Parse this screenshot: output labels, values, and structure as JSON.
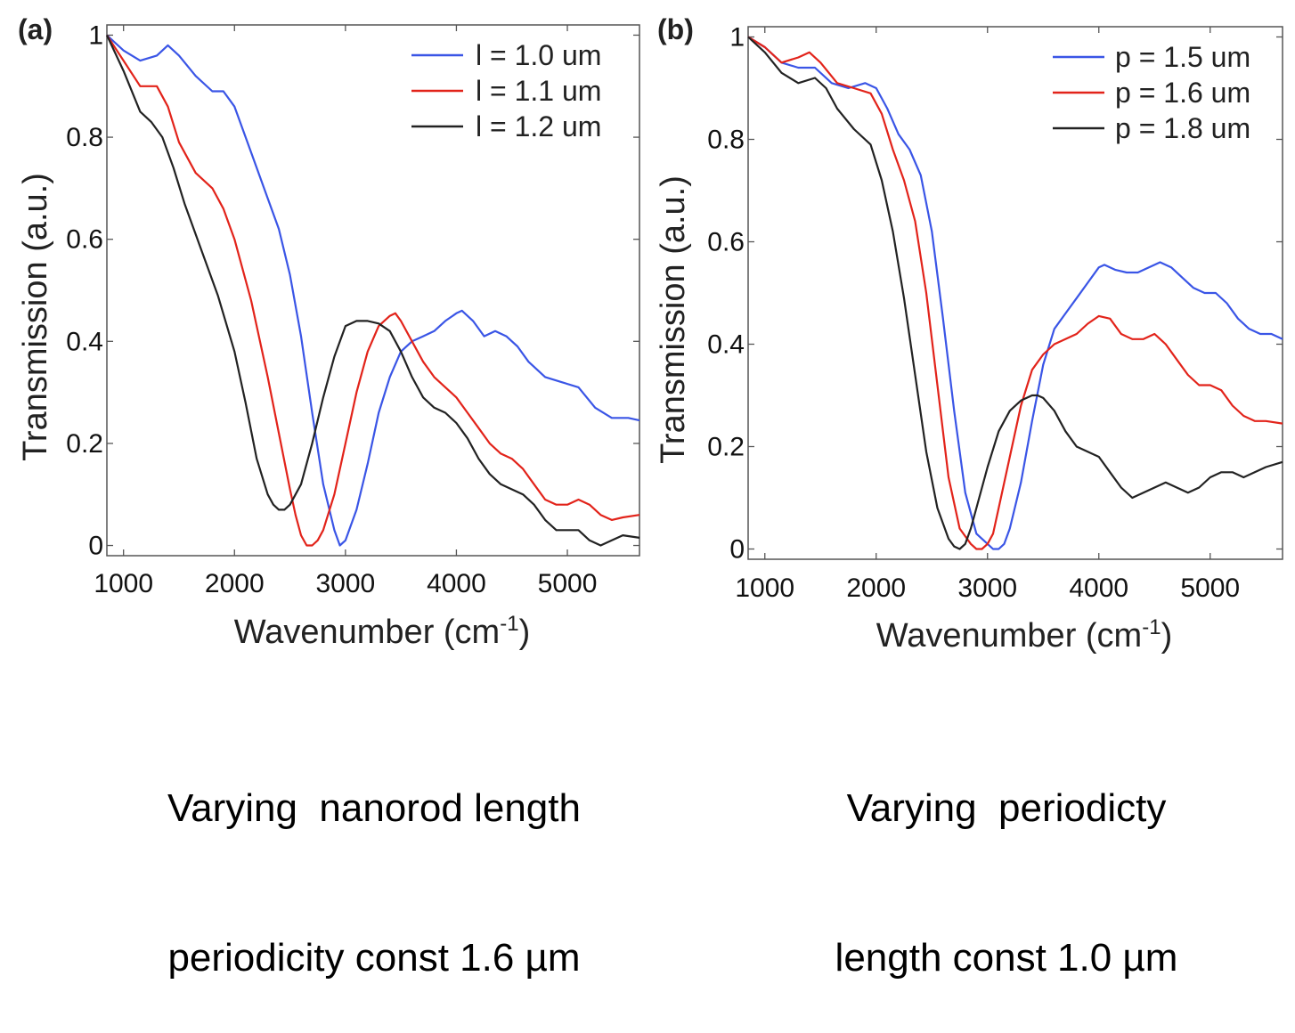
{
  "chart_data": [
    {
      "panel_label": "(a)",
      "type": "line",
      "xlabel": "Wavenumber (cm",
      "xlabel_sup": "-1",
      "xlabel_close": ")",
      "ylabel": "Transmission (a.u.)",
      "xlim": [
        850,
        5650
      ],
      "ylim": [
        -0.02,
        1.02
      ],
      "xticks": [
        1000,
        2000,
        3000,
        4000,
        5000
      ],
      "yticks": [
        0,
        0.2,
        0.4,
        0.6,
        0.8,
        1
      ],
      "ytick_labels": [
        "0",
        "0.2",
        "0.4",
        "0.6",
        "0.8",
        "1"
      ],
      "legend_position": "top-right",
      "grid": false,
      "series": [
        {
          "name": "l = 1.0 um",
          "color": "#3a55e6",
          "x": [
            850,
            1000,
            1150,
            1300,
            1400,
            1500,
            1650,
            1800,
            1900,
            2000,
            2150,
            2300,
            2400,
            2500,
            2600,
            2700,
            2800,
            2900,
            2950,
            3000,
            3100,
            3200,
            3300,
            3400,
            3500,
            3600,
            3700,
            3800,
            3900,
            4000,
            4050,
            4150,
            4250,
            4350,
            4450,
            4550,
            4650,
            4800,
            4950,
            5100,
            5250,
            5400,
            5550,
            5650
          ],
          "y": [
            1.0,
            0.97,
            0.95,
            0.96,
            0.98,
            0.96,
            0.92,
            0.89,
            0.89,
            0.86,
            0.77,
            0.68,
            0.62,
            0.53,
            0.41,
            0.26,
            0.12,
            0.03,
            0.0,
            0.01,
            0.07,
            0.16,
            0.26,
            0.33,
            0.38,
            0.4,
            0.41,
            0.42,
            0.44,
            0.455,
            0.46,
            0.44,
            0.41,
            0.42,
            0.41,
            0.39,
            0.36,
            0.33,
            0.32,
            0.31,
            0.27,
            0.25,
            0.25,
            0.245
          ]
        },
        {
          "name": "l = 1.1 um",
          "color": "#e2231a",
          "x": [
            850,
            1000,
            1150,
            1300,
            1400,
            1500,
            1650,
            1800,
            1900,
            2000,
            2150,
            2300,
            2400,
            2500,
            2550,
            2600,
            2650,
            2700,
            2750,
            2800,
            2900,
            3000,
            3100,
            3200,
            3300,
            3400,
            3450,
            3500,
            3600,
            3700,
            3800,
            3900,
            4000,
            4100,
            4200,
            4300,
            4400,
            4500,
            4600,
            4700,
            4800,
            4900,
            5000,
            5100,
            5200,
            5300,
            5400,
            5500,
            5650
          ],
          "y": [
            1.0,
            0.95,
            0.9,
            0.9,
            0.86,
            0.79,
            0.73,
            0.7,
            0.66,
            0.6,
            0.48,
            0.33,
            0.22,
            0.11,
            0.06,
            0.02,
            0.0,
            0.0,
            0.01,
            0.03,
            0.1,
            0.2,
            0.3,
            0.38,
            0.43,
            0.45,
            0.455,
            0.44,
            0.4,
            0.36,
            0.33,
            0.31,
            0.29,
            0.26,
            0.23,
            0.2,
            0.18,
            0.17,
            0.15,
            0.12,
            0.09,
            0.08,
            0.08,
            0.09,
            0.08,
            0.06,
            0.05,
            0.055,
            0.06
          ]
        },
        {
          "name": "l = 1.2 um",
          "color": "#222222",
          "x": [
            850,
            1000,
            1150,
            1250,
            1350,
            1450,
            1550,
            1700,
            1850,
            2000,
            2100,
            2200,
            2300,
            2350,
            2400,
            2450,
            2500,
            2600,
            2700,
            2800,
            2900,
            3000,
            3100,
            3200,
            3300,
            3400,
            3500,
            3600,
            3700,
            3800,
            3900,
            4000,
            4100,
            4200,
            4300,
            4400,
            4500,
            4600,
            4700,
            4800,
            4900,
            5000,
            5100,
            5200,
            5300,
            5400,
            5500,
            5650
          ],
          "y": [
            1.0,
            0.93,
            0.85,
            0.83,
            0.8,
            0.74,
            0.67,
            0.58,
            0.49,
            0.38,
            0.28,
            0.17,
            0.1,
            0.08,
            0.07,
            0.07,
            0.08,
            0.12,
            0.2,
            0.29,
            0.37,
            0.43,
            0.44,
            0.44,
            0.435,
            0.42,
            0.38,
            0.33,
            0.29,
            0.27,
            0.26,
            0.24,
            0.21,
            0.17,
            0.14,
            0.12,
            0.11,
            0.1,
            0.08,
            0.05,
            0.03,
            0.03,
            0.03,
            0.01,
            0.0,
            0.01,
            0.02,
            0.015
          ]
        }
      ]
    },
    {
      "panel_label": "(b)",
      "type": "line",
      "xlabel": "Wavenumber (cm",
      "xlabel_sup": "-1",
      "xlabel_close": ")",
      "ylabel": "Transmission (a.u.)",
      "xlim": [
        850,
        5650
      ],
      "ylim": [
        -0.02,
        1.02
      ],
      "xticks": [
        1000,
        2000,
        3000,
        4000,
        5000
      ],
      "yticks": [
        0,
        0.2,
        0.4,
        0.6,
        0.8,
        1
      ],
      "ytick_labels": [
        "0",
        "0.2",
        "0.4",
        "0.6",
        "0.8",
        "1"
      ],
      "legend_position": "top-right",
      "grid": false,
      "series": [
        {
          "name": "p = 1.5 um",
          "color": "#3a55e6",
          "x": [
            850,
            1000,
            1150,
            1300,
            1450,
            1600,
            1750,
            1900,
            2000,
            2100,
            2200,
            2300,
            2400,
            2500,
            2600,
            2700,
            2800,
            2900,
            3000,
            3050,
            3100,
            3150,
            3200,
            3300,
            3400,
            3500,
            3600,
            3700,
            3800,
            3900,
            4000,
            4050,
            4150,
            4250,
            4350,
            4450,
            4550,
            4650,
            4750,
            4850,
            4950,
            5050,
            5150,
            5250,
            5350,
            5450,
            5550,
            5650
          ],
          "y": [
            1.0,
            0.98,
            0.95,
            0.94,
            0.94,
            0.91,
            0.9,
            0.91,
            0.9,
            0.86,
            0.81,
            0.78,
            0.73,
            0.62,
            0.45,
            0.27,
            0.11,
            0.03,
            0.01,
            0.0,
            0.0,
            0.01,
            0.04,
            0.13,
            0.25,
            0.36,
            0.43,
            0.46,
            0.49,
            0.52,
            0.55,
            0.555,
            0.545,
            0.54,
            0.54,
            0.55,
            0.56,
            0.55,
            0.53,
            0.51,
            0.5,
            0.5,
            0.48,
            0.45,
            0.43,
            0.42,
            0.42,
            0.41
          ]
        },
        {
          "name": "p = 1.6 um",
          "color": "#e2231a",
          "x": [
            850,
            1000,
            1150,
            1300,
            1400,
            1500,
            1650,
            1800,
            1950,
            2050,
            2150,
            2250,
            2350,
            2450,
            2550,
            2650,
            2750,
            2850,
            2900,
            2950,
            3000,
            3050,
            3100,
            3200,
            3300,
            3400,
            3500,
            3600,
            3700,
            3800,
            3900,
            4000,
            4100,
            4200,
            4300,
            4400,
            4500,
            4600,
            4700,
            4800,
            4900,
            5000,
            5100,
            5200,
            5300,
            5400,
            5500,
            5650
          ],
          "y": [
            1.0,
            0.98,
            0.95,
            0.96,
            0.97,
            0.95,
            0.91,
            0.9,
            0.89,
            0.85,
            0.78,
            0.72,
            0.64,
            0.5,
            0.32,
            0.14,
            0.04,
            0.01,
            0.0,
            0.0,
            0.01,
            0.03,
            0.08,
            0.18,
            0.28,
            0.35,
            0.38,
            0.4,
            0.41,
            0.42,
            0.44,
            0.455,
            0.45,
            0.42,
            0.41,
            0.41,
            0.42,
            0.4,
            0.37,
            0.34,
            0.32,
            0.32,
            0.31,
            0.28,
            0.26,
            0.25,
            0.25,
            0.245
          ]
        },
        {
          "name": "p = 1.8 um",
          "color": "#222222",
          "x": [
            850,
            1000,
            1150,
            1300,
            1450,
            1550,
            1650,
            1800,
            1950,
            2050,
            2150,
            2250,
            2350,
            2450,
            2550,
            2650,
            2700,
            2750,
            2800,
            2850,
            2900,
            3000,
            3100,
            3200,
            3300,
            3400,
            3450,
            3500,
            3600,
            3700,
            3800,
            3900,
            4000,
            4100,
            4200,
            4300,
            4400,
            4500,
            4600,
            4700,
            4800,
            4900,
            5000,
            5100,
            5200,
            5300,
            5400,
            5500,
            5650
          ],
          "y": [
            1.0,
            0.97,
            0.93,
            0.91,
            0.92,
            0.9,
            0.86,
            0.82,
            0.79,
            0.72,
            0.62,
            0.49,
            0.34,
            0.19,
            0.08,
            0.02,
            0.005,
            0.0,
            0.01,
            0.04,
            0.08,
            0.16,
            0.23,
            0.27,
            0.29,
            0.3,
            0.3,
            0.295,
            0.27,
            0.23,
            0.2,
            0.19,
            0.18,
            0.15,
            0.12,
            0.1,
            0.11,
            0.12,
            0.13,
            0.12,
            0.11,
            0.12,
            0.14,
            0.15,
            0.15,
            0.14,
            0.15,
            0.16,
            0.17
          ]
        }
      ]
    }
  ],
  "captions": [
    {
      "line1": "Varying  nanorod length",
      "line2": "periodicity const 1.6 µm"
    },
    {
      "line1": "Varying  periodicty",
      "line2": "length const 1.0 µm"
    }
  ]
}
